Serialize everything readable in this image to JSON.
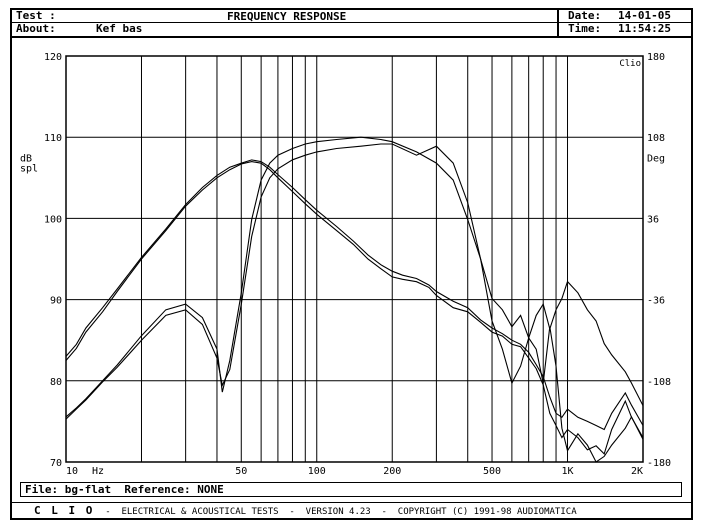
{
  "header": {
    "test_label": "Test :",
    "about_label": "About:",
    "about_value": "Kef bas",
    "title": "FREQUENCY RESPONSE",
    "date_label": "Date:",
    "date_value": "14-01-05",
    "time_label": "Time:",
    "time_value": "11:54:25"
  },
  "footer": {
    "file_label": "File:",
    "file_value": "bg-flat",
    "reference_label": "Reference:",
    "reference_value": "NONE",
    "brand": "C L I O",
    "credits": "-  ELECTRICAL & ACOUSTICAL TESTS  -  VERSION 4.23  -  COPYRIGHT (C) 1991-98 AUDIOMATICA"
  },
  "chart_data": {
    "type": "line",
    "title": "FREQUENCY RESPONSE",
    "corner_label": "Clio",
    "xlabel": "Hz",
    "ylabel_left": [
      "dB",
      "spl"
    ],
    "ylabel_right": "Deg",
    "xscale": "log",
    "xlim": [
      10,
      2000
    ],
    "ylim": [
      70,
      120
    ],
    "y2lim": [
      -180,
      180
    ],
    "grid": true,
    "x_ticks": [
      {
        "value": 10,
        "label": "10"
      },
      {
        "value": 50,
        "label": "50"
      },
      {
        "value": 100,
        "label": "100"
      },
      {
        "value": 200,
        "label": "200"
      },
      {
        "value": 500,
        "label": "500"
      },
      {
        "value": 1000,
        "label": "1K"
      },
      {
        "value": 2000,
        "label": "2K"
      }
    ],
    "x_gridlines": [
      20,
      30,
      40,
      50,
      60,
      70,
      80,
      90,
      100,
      200,
      300,
      400,
      500,
      600,
      700,
      800,
      900,
      1000
    ],
    "y_ticks": [
      70,
      80,
      90,
      100,
      110,
      120
    ],
    "y2_ticks": [
      {
        "value": -180,
        "label": "-180"
      },
      {
        "value": -108,
        "label": "-108"
      },
      {
        "value": -36,
        "label": "-36"
      },
      {
        "value": 36,
        "label": "36"
      },
      {
        "value": 108,
        "label": "108"
      },
      {
        "value": 180,
        "label": "180"
      }
    ],
    "series": [
      {
        "axis": "left",
        "x": [
          10,
          11,
          12,
          14,
          16,
          20,
          25,
          30,
          35,
          40,
          45,
          50,
          55,
          60,
          65,
          70,
          80,
          90,
          100,
          120,
          140,
          160,
          180,
          200,
          220,
          250,
          280,
          300,
          350,
          400,
          450,
          500,
          550,
          600,
          650,
          700,
          750,
          800,
          850,
          900,
          950,
          1000,
          1100,
          1200,
          1300,
          1400,
          1500,
          1700,
          1800,
          2000
        ],
        "y": [
          82.5,
          84,
          86,
          88.5,
          91,
          95,
          98.5,
          101.5,
          103.5,
          105,
          106,
          106.7,
          107,
          106.8,
          106,
          105,
          103.3,
          101.8,
          100.5,
          98.5,
          96.8,
          95,
          93.8,
          92.8,
          92.5,
          92.2,
          91.5,
          90.5,
          89,
          88.5,
          87.2,
          86,
          85.5,
          84.5,
          84.2,
          82.8,
          81.5,
          79.5,
          76,
          74.5,
          73,
          74,
          73,
          71.5,
          72,
          71,
          74,
          77.5,
          75.5,
          73
        ]
      },
      {
        "axis": "left",
        "x": [
          10,
          11,
          12,
          14,
          16,
          20,
          25,
          30,
          35,
          40,
          45,
          50,
          55,
          60,
          65,
          70,
          80,
          90,
          100,
          120,
          140,
          160,
          180,
          200,
          220,
          250,
          280,
          300,
          350,
          400,
          450,
          500,
          550,
          600,
          650,
          700,
          750,
          800,
          850,
          900,
          950,
          1000,
          1100,
          1200,
          1300,
          1400,
          1500,
          1700,
          1800,
          2000
        ],
        "y": [
          83,
          84.5,
          86.5,
          89,
          91.3,
          95.2,
          98.7,
          101.7,
          103.8,
          105.3,
          106.3,
          106.8,
          107.2,
          107,
          106.3,
          105.4,
          103.8,
          102.3,
          101,
          99,
          97.2,
          95.5,
          94.3,
          93.5,
          93,
          92.6,
          91.8,
          91,
          89.8,
          89,
          87.5,
          86.5,
          85.8,
          85,
          84.5,
          83.5,
          82,
          80.5,
          78,
          76,
          75.5,
          76.5,
          75.5,
          75,
          74.5,
          74,
          76,
          78.5,
          77,
          74.5
        ]
      },
      {
        "axis": "right",
        "x": [
          10,
          11,
          12,
          14,
          16,
          20,
          25,
          30,
          35,
          40,
          42,
          45,
          50,
          55,
          60,
          65,
          70,
          80,
          90,
          100,
          120,
          150,
          180,
          200,
          250,
          300,
          350,
          400,
          450,
          500,
          550,
          600,
          650,
          700,
          750,
          800,
          850,
          900,
          950,
          1000,
          1100,
          1200,
          1300,
          1400,
          1500,
          1700,
          1800,
          2000
        ],
        "y": [
          -140,
          -132,
          -124,
          -108,
          -94,
          -68,
          -45,
          -40,
          -52,
          -80,
          -118,
          -90,
          -30,
          35,
          70,
          85,
          92,
          98,
          102,
          104,
          106,
          108,
          106,
          104,
          95,
          85,
          70,
          35,
          0,
          -35,
          -45,
          -60,
          -50,
          -70,
          -50,
          -40,
          -62,
          -45,
          -35,
          -20,
          -30,
          -45,
          -55,
          -75,
          -85,
          -100,
          -110,
          -130
        ]
      },
      {
        "axis": "right",
        "x": [
          10,
          11,
          12,
          14,
          16,
          20,
          25,
          30,
          35,
          40,
          42,
          45,
          50,
          55,
          60,
          65,
          70,
          80,
          90,
          100,
          120,
          150,
          180,
          200,
          250,
          300,
          350,
          400,
          450,
          500,
          550,
          600,
          650,
          700,
          750,
          800,
          850,
          900,
          950,
          1000,
          1100,
          1200,
          1300,
          1400,
          1500,
          1700,
          1800,
          2000
        ],
        "y": [
          -142,
          -133,
          -125,
          -109,
          -96,
          -72,
          -50,
          -45,
          -58,
          -88,
          -112,
          -98,
          -40,
          20,
          55,
          72,
          80,
          88,
          92,
          95,
          98,
          100,
          102,
          102,
          92,
          100,
          85,
          50,
          0,
          -55,
          -80,
          -110,
          -95,
          -70,
          -80,
          -110,
          -60,
          -95,
          -150,
          -170,
          -155,
          -165,
          -185,
          -175,
          -165,
          -150,
          -140,
          -160
        ]
      }
    ]
  }
}
